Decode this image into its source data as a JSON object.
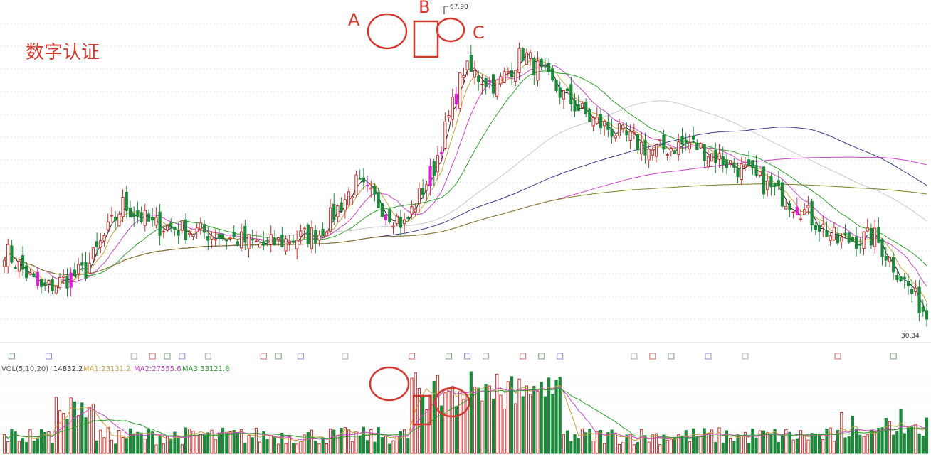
{
  "watermark": "数字认证",
  "annotations": {
    "a": "A",
    "b": "B",
    "c": "C"
  },
  "price_labels": {
    "high": "67.90",
    "low": "30.34"
  },
  "volume_legend": {
    "prefix": "VOL(5,10,20)",
    "vol": "14832.2",
    "ma1": "MA1:23131.2",
    "ma2": "MA2:27555.6",
    "ma3": "MA3:33121.8"
  },
  "colors": {
    "up": "#c9302c",
    "down": "#1a8a3a",
    "limit_up": "#e020d8",
    "annotation": "#d33a2f",
    "ma1": "#c8a03c",
    "ma2": "#cc44cc",
    "ma3": "#2ca02c",
    "ma_navy": "#3c3c8c",
    "ma_long": "#808020",
    "ma_gray": "#c8c8c8",
    "ma_black": "#222222"
  },
  "chart_data": {
    "type": "candlestick",
    "price_range": [
      29,
      70
    ],
    "high_marker": 67.9,
    "low_marker": 30.34,
    "grid": true,
    "n_days": 250,
    "key_points": [
      {
        "day": 0,
        "close": 40.0
      },
      {
        "day": 10,
        "close": 35.0
      },
      {
        "day": 22,
        "close": 37.5
      },
      {
        "day": 32,
        "close": 45.5
      },
      {
        "day": 40,
        "close": 43.0
      },
      {
        "day": 55,
        "close": 42.0
      },
      {
        "day": 70,
        "close": 40.5
      },
      {
        "day": 85,
        "close": 42.0
      },
      {
        "day": 95,
        "close": 48.0
      },
      {
        "day": 108,
        "close": 43.0
      },
      {
        "day": 116,
        "close": 50.0
      },
      {
        "day": 124,
        "close": 62.0
      },
      {
        "day": 133,
        "close": 60.0
      },
      {
        "day": 140,
        "close": 64.0
      },
      {
        "day": 148,
        "close": 60.0
      },
      {
        "day": 158,
        "close": 56.0
      },
      {
        "day": 175,
        "close": 52.0
      },
      {
        "day": 185,
        "close": 53.0
      },
      {
        "day": 200,
        "close": 49.5
      },
      {
        "day": 215,
        "close": 45.0
      },
      {
        "day": 225,
        "close": 41.0
      },
      {
        "day": 235,
        "close": 41.5
      },
      {
        "day": 249,
        "close": 32.0
      }
    ],
    "moving_averages": [
      {
        "name": "MA1",
        "value": 23131.2,
        "period": 5
      },
      {
        "name": "MA2",
        "value": 27555.6,
        "period": 10
      },
      {
        "name": "MA3",
        "value": 33121.8,
        "period": 20
      }
    ],
    "volume_latest": 14832.2
  }
}
